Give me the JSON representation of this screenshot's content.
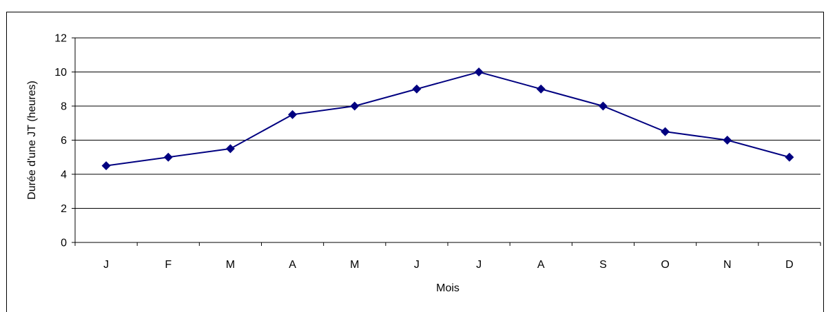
{
  "chart_data": {
    "type": "line",
    "title": "",
    "xlabel": "Mois",
    "ylabel": "Durée d'une JT (heures)",
    "categories": [
      "J",
      "F",
      "M",
      "A",
      "M",
      "J",
      "J",
      "A",
      "S",
      "O",
      "N",
      "D"
    ],
    "series": [
      {
        "values": [
          4.5,
          5,
          5.5,
          7.5,
          8,
          9,
          10,
          9,
          8,
          6.5,
          6,
          5
        ]
      }
    ],
    "ylim": [
      0,
      12
    ],
    "yticks": [
      "0",
      "2",
      "4",
      "6",
      "8",
      "10",
      "12"
    ],
    "grid": "horizontal",
    "legend": "none",
    "colors": {
      "series": "#000080",
      "grid": "#000000",
      "background": "#ffffff"
    }
  }
}
